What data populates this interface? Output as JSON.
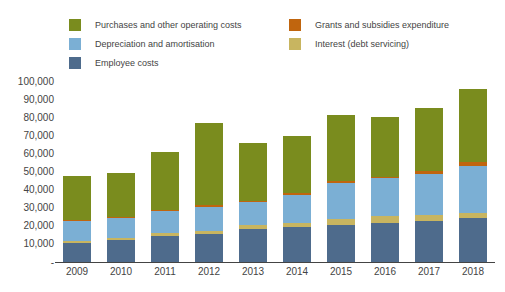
{
  "chart_data": {
    "type": "bar",
    "stacked": true,
    "categories": [
      "2009",
      "2010",
      "2011",
      "2012",
      "2013",
      "2014",
      "2015",
      "2016",
      "2017",
      "2018"
    ],
    "series": [
      {
        "name": "Employee costs",
        "color": "#4E6B8C",
        "values": [
          10500,
          12000,
          14500,
          15500,
          18500,
          19500,
          20500,
          21500,
          22500,
          24500
        ]
      },
      {
        "name": "Interest (debt servicing)",
        "color": "#C8B560",
        "values": [
          1200,
          1200,
          1500,
          1800,
          1800,
          1800,
          3500,
          4000,
          3200,
          2800
        ]
      },
      {
        "name": "Depreciation and amortisation",
        "color": "#7BAFD4",
        "values": [
          11000,
          11500,
          12500,
          13500,
          13000,
          16000,
          20000,
          21000,
          23000,
          26000
        ]
      },
      {
        "name": "Grants and subsidies expenditure",
        "color": "#C0650E",
        "values": [
          400,
          400,
          500,
          700,
          600,
          600,
          700,
          700,
          1800,
          2200
        ]
      },
      {
        "name": "Purchases and other operating costs",
        "color": "#7A8C1E",
        "values": [
          24500,
          24000,
          32000,
          45500,
          32000,
          31500,
          36500,
          33000,
          34500,
          40000
        ]
      }
    ],
    "ylim": [
      0,
      100000
    ],
    "yticks": [
      {
        "value": 0,
        "label": "-"
      },
      {
        "value": 10000,
        "label": "10,000"
      },
      {
        "value": 20000,
        "label": "20,000"
      },
      {
        "value": 30000,
        "label": "30,000"
      },
      {
        "value": 40000,
        "label": "40,000"
      },
      {
        "value": 50000,
        "label": "50,000"
      },
      {
        "value": 60000,
        "label": "60,000"
      },
      {
        "value": 70000,
        "label": "70,000"
      },
      {
        "value": 80000,
        "label": "80,000"
      },
      {
        "value": 90000,
        "label": "90,000"
      },
      {
        "value": 100000,
        "label": "100,000"
      }
    ],
    "grid": false,
    "legend": "top"
  }
}
